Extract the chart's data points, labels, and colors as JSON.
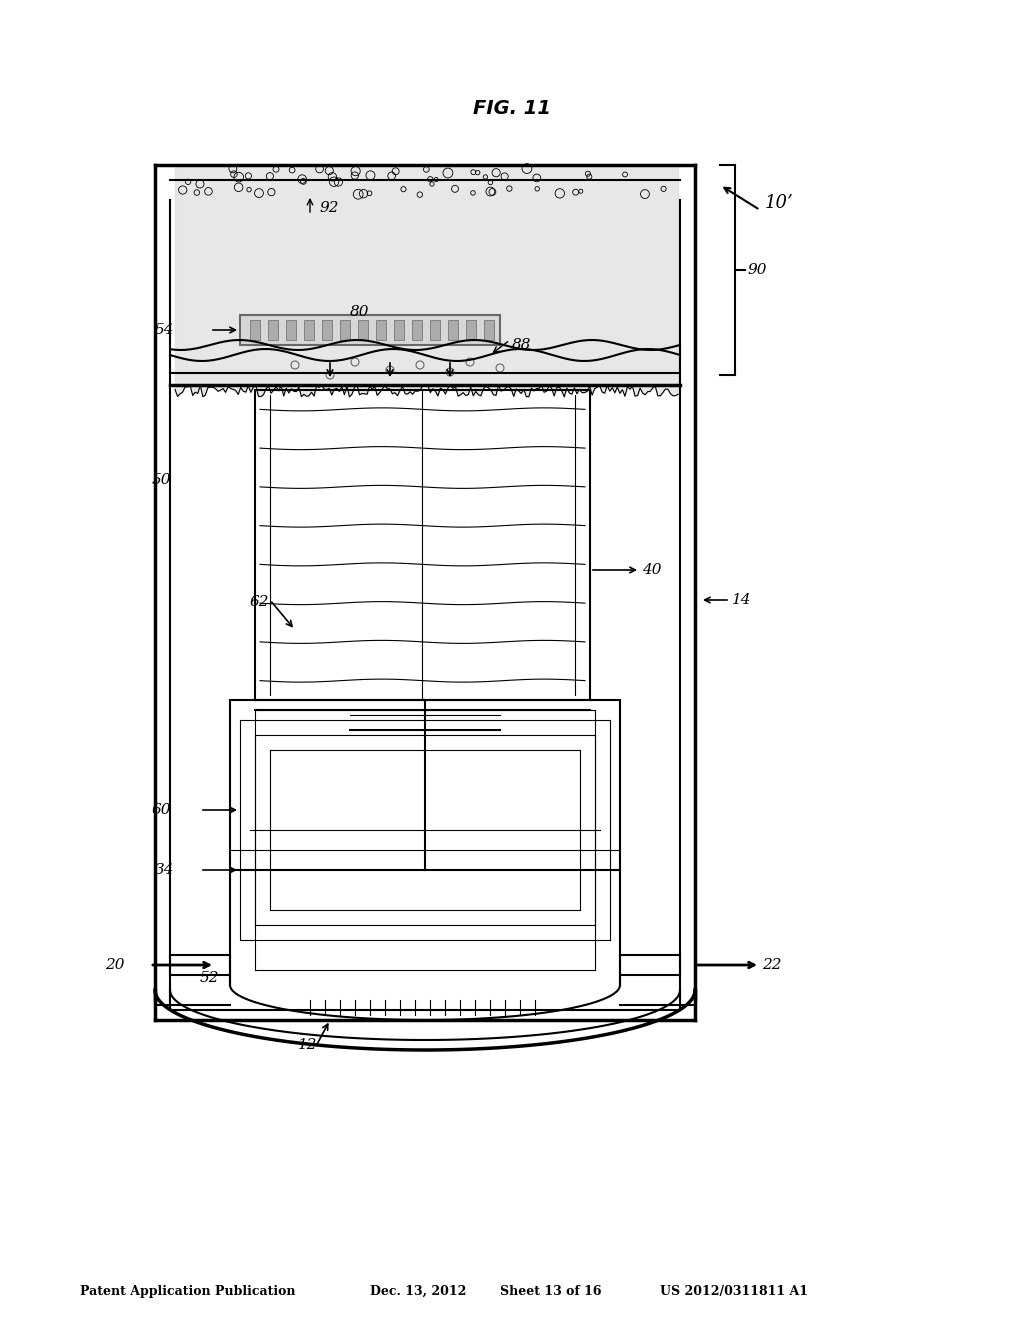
{
  "bg_color": "#ffffff",
  "line_color": "#000000",
  "gray_fill": "#d0d0d0",
  "light_gray": "#e8e8e8",
  "mid_gray": "#b0b0b0",
  "header_text": "Patent Application Publication",
  "header_date": "Dec. 13, 2012",
  "header_sheet": "Sheet 13 of 16",
  "header_patent": "US 2012/0311811 A1",
  "figure_label": "FIG. 11",
  "labels": {
    "10prime": "10’",
    "12": "12",
    "14": "14",
    "20": "20",
    "22": "22",
    "34": "34",
    "40": "40",
    "50": "50",
    "52": "52",
    "54": "54",
    "60": "60",
    "62": "62",
    "80": "80",
    "88": "88",
    "90": "90",
    "92": "92"
  }
}
